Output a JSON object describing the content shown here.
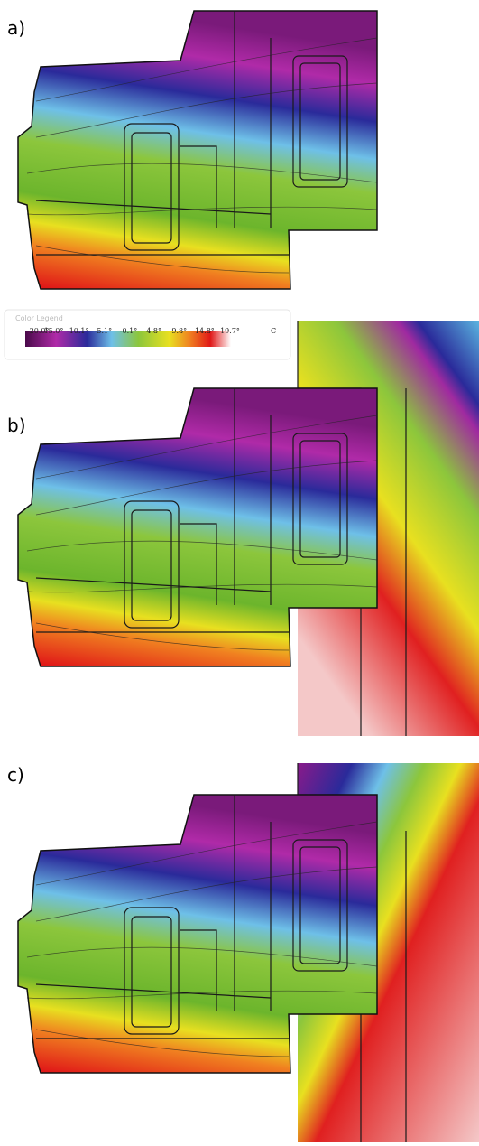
{
  "panels": [
    {
      "label": "a)"
    },
    {
      "label": "b)"
    },
    {
      "label": "c)"
    }
  ],
  "legend": {
    "title": "Color Legend",
    "labels": [
      "-20.0°",
      "-15.0°",
      "-10.1°",
      "-5.1°",
      "-0.1°",
      "4.8°",
      "9.8°",
      "14.8°",
      "19.7°"
    ],
    "unit": "C"
  }
}
